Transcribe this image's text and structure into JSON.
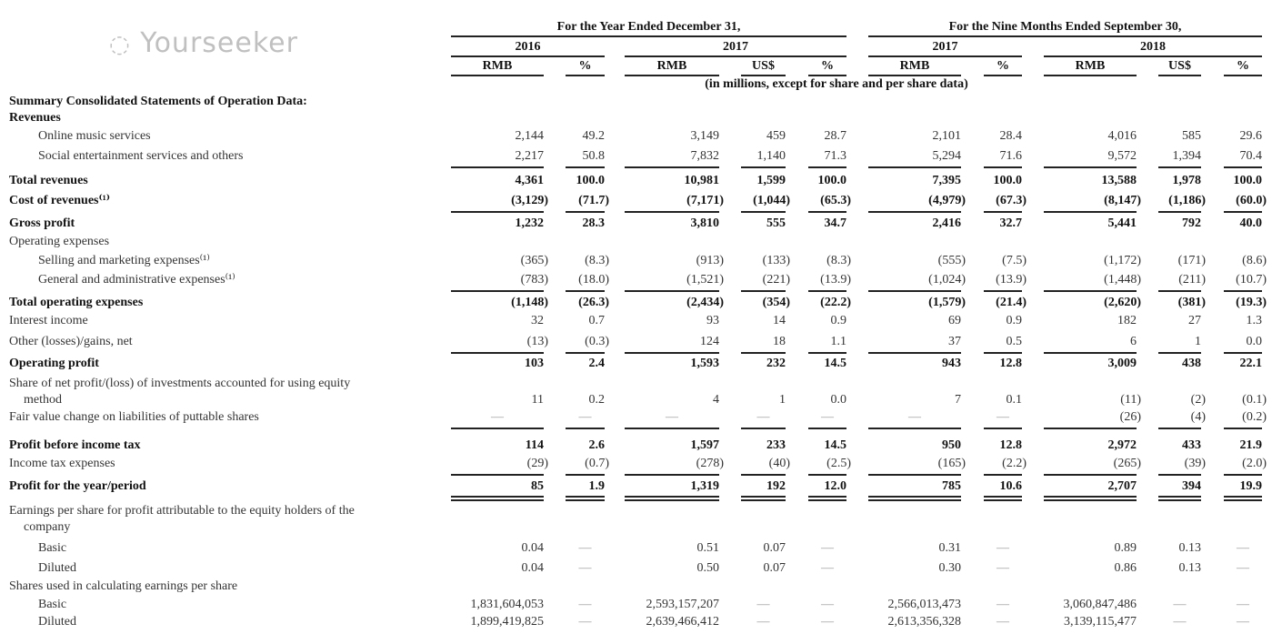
{
  "header": {
    "group_year": "For the Year Ended December 31,",
    "group_nine": "For the Nine Months Ended September 30,",
    "years": [
      "2016",
      "2017",
      "2017",
      "2018"
    ],
    "columns": [
      "RMB",
      "%",
      "RMB",
      "US$",
      "%",
      "RMB",
      "%",
      "RMB",
      "US$",
      "%"
    ],
    "units_note": "(in millions, except for share and per share data)"
  },
  "rows": [
    {
      "label": "Summary Consolidated Statements of Operation Data:",
      "bold": true,
      "indent": 0,
      "values": []
    },
    {
      "label": "Revenues",
      "bold": true,
      "indent": 0,
      "values": []
    },
    {
      "label": "Online music services",
      "bold": false,
      "indent": 2,
      "values": [
        "2,144",
        "49.2",
        "3,149",
        "459",
        "28.7",
        "2,101",
        "28.4",
        "4,016",
        "585",
        "29.6"
      ]
    },
    {
      "label": "Social entertainment services and others",
      "bold": false,
      "indent": 2,
      "ul": "single",
      "values": [
        "2,217",
        "50.8",
        "7,832",
        "1,140",
        "71.3",
        "5,294",
        "71.6",
        "9,572",
        "1,394",
        "70.4"
      ]
    },
    {
      "label": "Total revenues",
      "bold": true,
      "indent": 0,
      "values": [
        "4,361",
        "100.0",
        "10,981",
        "1,599",
        "100.0",
        "7,395",
        "100.0",
        "13,588",
        "1,978",
        "100.0"
      ]
    },
    {
      "label": "Cost of revenues⁽¹⁾",
      "bold": true,
      "indent": 0,
      "ul": "single",
      "values": [
        "(3,129)",
        "(71.7)",
        "(7,171)",
        "(1,044)",
        "(65.3)",
        "(4,979)",
        "(67.3)",
        "(8,147)",
        "(1,186)",
        "(60.0)"
      ]
    },
    {
      "label": "Gross profit",
      "bold": true,
      "indent": 0,
      "values": [
        "1,232",
        "28.3",
        "3,810",
        "555",
        "34.7",
        "2,416",
        "32.7",
        "5,441",
        "792",
        "40.0"
      ]
    },
    {
      "label": "Operating expenses",
      "bold": false,
      "indent": 0,
      "values": []
    },
    {
      "label": "Selling and marketing expenses⁽¹⁾",
      "bold": false,
      "indent": 2,
      "values": [
        "(365)",
        "(8.3)",
        "(913)",
        "(133)",
        "(8.3)",
        "(555)",
        "(7.5)",
        "(1,172)",
        "(171)",
        "(8.6)"
      ]
    },
    {
      "label": "General and administrative expenses⁽¹⁾",
      "bold": false,
      "indent": 2,
      "ul": "single",
      "values": [
        "(783)",
        "(18.0)",
        "(1,521)",
        "(221)",
        "(13.9)",
        "(1,024)",
        "(13.9)",
        "(1,448)",
        "(211)",
        "(10.7)"
      ]
    },
    {
      "label": "Total operating expenses",
      "bold": true,
      "indent": 0,
      "values": [
        "(1,148)",
        "(26.3)",
        "(2,434)",
        "(354)",
        "(22.2)",
        "(1,579)",
        "(21.4)",
        "(2,620)",
        "(381)",
        "(19.3)"
      ]
    },
    {
      "label": "Interest income",
      "bold": false,
      "indent": 0,
      "values": [
        "32",
        "0.7",
        "93",
        "14",
        "0.9",
        "69",
        "0.9",
        "182",
        "27",
        "1.3"
      ]
    },
    {
      "label": "Other (losses)/gains, net",
      "bold": false,
      "indent": 0,
      "ul": "single",
      "values": [
        "(13)",
        "(0.3)",
        "124",
        "18",
        "1.1",
        "37",
        "0.5",
        "6",
        "1",
        "0.0"
      ]
    },
    {
      "label": "Operating profit",
      "bold": true,
      "indent": 0,
      "values": [
        "103",
        "2.4",
        "1,593",
        "232",
        "14.5",
        "943",
        "12.8",
        "3,009",
        "438",
        "22.1"
      ]
    },
    {
      "label": "Share of net profit/(loss) of investments accounted for using equity",
      "label2": "method",
      "bold": false,
      "indent": 0,
      "values": [
        "11",
        "0.2",
        "4",
        "1",
        "0.0",
        "7",
        "0.1",
        "(11)",
        "(2)",
        "(0.1)"
      ]
    },
    {
      "label": "Fair value change on liabilities of puttable shares",
      "bold": false,
      "indent": 0,
      "ul": "single",
      "values": [
        "—",
        "—",
        "—",
        "—",
        "—",
        "—",
        "—",
        "(26)",
        "(4)",
        "(0.2)"
      ]
    },
    {
      "label": "Profit before income tax",
      "bold": true,
      "indent": 0,
      "values": [
        "114",
        "2.6",
        "1,597",
        "233",
        "14.5",
        "950",
        "12.8",
        "2,972",
        "433",
        "21.9"
      ]
    },
    {
      "label": "Income tax expenses",
      "bold": false,
      "indent": 0,
      "ul": "single",
      "values": [
        "(29)",
        "(0.7)",
        "(278)",
        "(40)",
        "(2.5)",
        "(165)",
        "(2.2)",
        "(265)",
        "(39)",
        "(2.0)"
      ]
    },
    {
      "label": "Profit for the year/period",
      "bold": true,
      "indent": 0,
      "ul": "double",
      "values": [
        "85",
        "1.9",
        "1,319",
        "192",
        "12.0",
        "785",
        "10.6",
        "2,707",
        "394",
        "19.9"
      ]
    },
    {
      "label": "Earnings per share for profit attributable to the equity holders of the",
      "label2": "company",
      "bold": false,
      "indent": 0,
      "values": []
    },
    {
      "label": "Basic",
      "bold": false,
      "indent": 2,
      "values": [
        "0.04",
        "—",
        "0.51",
        "0.07",
        "—",
        "0.31",
        "—",
        "0.89",
        "0.13",
        "—"
      ]
    },
    {
      "label": "Diluted",
      "bold": false,
      "indent": 2,
      "values": [
        "0.04",
        "—",
        "0.50",
        "0.07",
        "—",
        "0.30",
        "—",
        "0.86",
        "0.13",
        "—"
      ]
    },
    {
      "label": "Shares used in calculating earnings per share",
      "bold": false,
      "indent": 0,
      "values": []
    },
    {
      "label": "Basic",
      "bold": false,
      "indent": 2,
      "values": [
        "1,831,604,053",
        "—",
        "2,593,157,207",
        "—",
        "—",
        "2,566,013,473",
        "—",
        "3,060,847,486",
        "—",
        "—"
      ]
    },
    {
      "label": "Diluted",
      "bold": false,
      "indent": 2,
      "values": [
        "1,899,419,825",
        "—",
        "2,639,466,412",
        "—",
        "—",
        "2,613,356,328",
        "—",
        "3,139,115,477",
        "—",
        "—"
      ]
    }
  ],
  "watermark": {
    "text": "Yourseeker",
    "icon": "wechat-icon"
  }
}
